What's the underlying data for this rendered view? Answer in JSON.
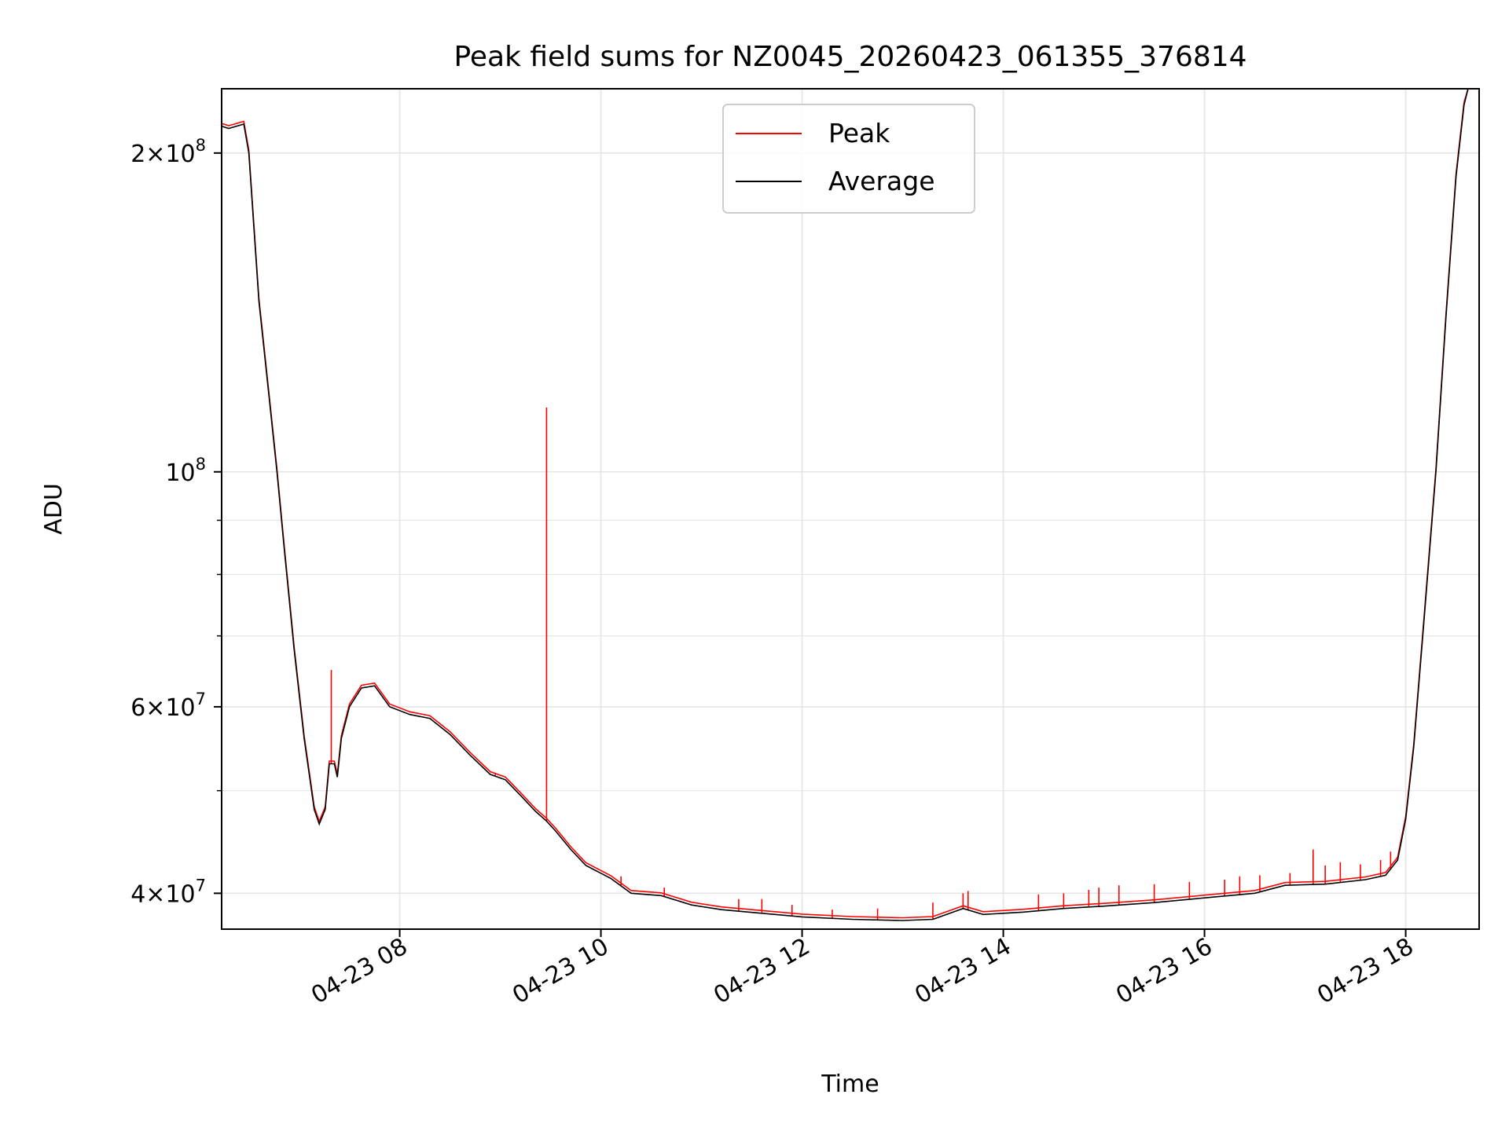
{
  "chart_data": {
    "type": "line",
    "title": "Peak field sums for NZ0045_20260423_061355_376814",
    "xlabel": "Time",
    "ylabel": "ADU",
    "yscale": "log",
    "ylim": [
      37000000,
      230000000
    ],
    "xlim_hours": [
      6.23,
      18.73
    ],
    "grid": true,
    "legend_location": "upper center",
    "colors": {
      "peak": "#ff0000",
      "average": "#000000",
      "grid": "#e5e5e5"
    },
    "x_ticks": [
      {
        "hour": 8,
        "label": "04-23 08"
      },
      {
        "hour": 10,
        "label": "04-23 10"
      },
      {
        "hour": 12,
        "label": "04-23 12"
      },
      {
        "hour": 14,
        "label": "04-23 14"
      },
      {
        "hour": 16,
        "label": "04-23 16"
      },
      {
        "hour": 18,
        "label": "04-23 18"
      }
    ],
    "y_major_ticks": [
      {
        "value": 40000000,
        "label_mantissa": "4",
        "label_times": "×",
        "label_base": "10",
        "label_exp": "7"
      },
      {
        "value": 60000000,
        "label_mantissa": "6",
        "label_times": "×",
        "label_base": "10",
        "label_exp": "7"
      },
      {
        "value": 100000000,
        "label_mantissa": "",
        "label_times": "",
        "label_base": "10",
        "label_exp": "8"
      },
      {
        "value": 200000000,
        "label_mantissa": "2",
        "label_times": "×",
        "label_base": "10",
        "label_exp": "8"
      }
    ],
    "y_minor_ticks": [
      50000000,
      70000000,
      80000000,
      90000000
    ],
    "series": [
      {
        "name": "Peak",
        "key": "peak",
        "spikes": [
          [
            7.32,
            65000000
          ],
          [
            9.46,
            115000000
          ],
          [
            8.95,
            52000000
          ],
          [
            10.2,
            41500000
          ],
          [
            10.63,
            40500000
          ],
          [
            11.37,
            39500000
          ],
          [
            11.6,
            39500000
          ],
          [
            11.9,
            39000000
          ],
          [
            12.3,
            38600000
          ],
          [
            12.75,
            38700000
          ],
          [
            13.3,
            39200000
          ],
          [
            13.6,
            40000000
          ],
          [
            13.65,
            40200000
          ],
          [
            14.35,
            39900000
          ],
          [
            14.6,
            40000000
          ],
          [
            14.85,
            40300000
          ],
          [
            14.95,
            40500000
          ],
          [
            15.15,
            40700000
          ],
          [
            15.5,
            40800000
          ],
          [
            15.85,
            41000000
          ],
          [
            16.2,
            41200000
          ],
          [
            16.35,
            41500000
          ],
          [
            16.55,
            41600000
          ],
          [
            16.85,
            41800000
          ],
          [
            17.08,
            44000000
          ],
          [
            17.2,
            42500000
          ],
          [
            17.35,
            42800000
          ],
          [
            17.55,
            42600000
          ],
          [
            17.75,
            43000000
          ],
          [
            17.85,
            43800000
          ]
        ]
      },
      {
        "name": "Average",
        "key": "average",
        "points": [
          [
            6.23,
            212000000
          ],
          [
            6.3,
            211000000
          ],
          [
            6.45,
            213000000
          ],
          [
            6.5,
            200000000
          ],
          [
            6.6,
            145000000
          ],
          [
            6.7,
            118000000
          ],
          [
            6.78,
            100000000
          ],
          [
            6.85,
            85000000
          ],
          [
            6.95,
            68000000
          ],
          [
            7.05,
            56000000
          ],
          [
            7.15,
            48000000
          ],
          [
            7.2,
            46500000
          ],
          [
            7.26,
            48000000
          ],
          [
            7.3,
            53000000
          ],
          [
            7.35,
            53000000
          ],
          [
            7.38,
            51500000
          ],
          [
            7.42,
            56000000
          ],
          [
            7.5,
            60000000
          ],
          [
            7.62,
            62500000
          ],
          [
            7.75,
            62800000
          ],
          [
            7.9,
            60000000
          ],
          [
            8.1,
            59000000
          ],
          [
            8.3,
            58500000
          ],
          [
            8.5,
            56500000
          ],
          [
            8.7,
            54000000
          ],
          [
            8.9,
            51800000
          ],
          [
            9.05,
            51200000
          ],
          [
            9.2,
            49500000
          ],
          [
            9.35,
            47800000
          ],
          [
            9.46,
            46800000
          ],
          [
            9.55,
            45800000
          ],
          [
            9.7,
            44000000
          ],
          [
            9.85,
            42500000
          ],
          [
            10.1,
            41300000
          ],
          [
            10.3,
            40000000
          ],
          [
            10.6,
            39800000
          ],
          [
            10.9,
            39000000
          ],
          [
            11.2,
            38600000
          ],
          [
            11.6,
            38300000
          ],
          [
            12.0,
            38000000
          ],
          [
            12.5,
            37800000
          ],
          [
            13.0,
            37700000
          ],
          [
            13.3,
            37800000
          ],
          [
            13.6,
            38700000
          ],
          [
            13.8,
            38200000
          ],
          [
            14.2,
            38400000
          ],
          [
            14.6,
            38700000
          ],
          [
            15.0,
            38900000
          ],
          [
            15.5,
            39200000
          ],
          [
            16.0,
            39600000
          ],
          [
            16.5,
            40000000
          ],
          [
            16.8,
            40700000
          ],
          [
            17.2,
            40800000
          ],
          [
            17.6,
            41200000
          ],
          [
            17.8,
            41600000
          ],
          [
            17.92,
            43000000
          ],
          [
            18.0,
            47000000
          ],
          [
            18.08,
            55000000
          ],
          [
            18.18,
            72000000
          ],
          [
            18.3,
            100000000
          ],
          [
            18.4,
            140000000
          ],
          [
            18.5,
            190000000
          ],
          [
            18.58,
            222000000
          ],
          [
            18.62,
            230000000
          ],
          [
            18.73,
            230000000
          ]
        ]
      }
    ],
    "legend": [
      {
        "label": "Peak",
        "key": "peak"
      },
      {
        "label": "Average",
        "key": "average"
      }
    ]
  }
}
